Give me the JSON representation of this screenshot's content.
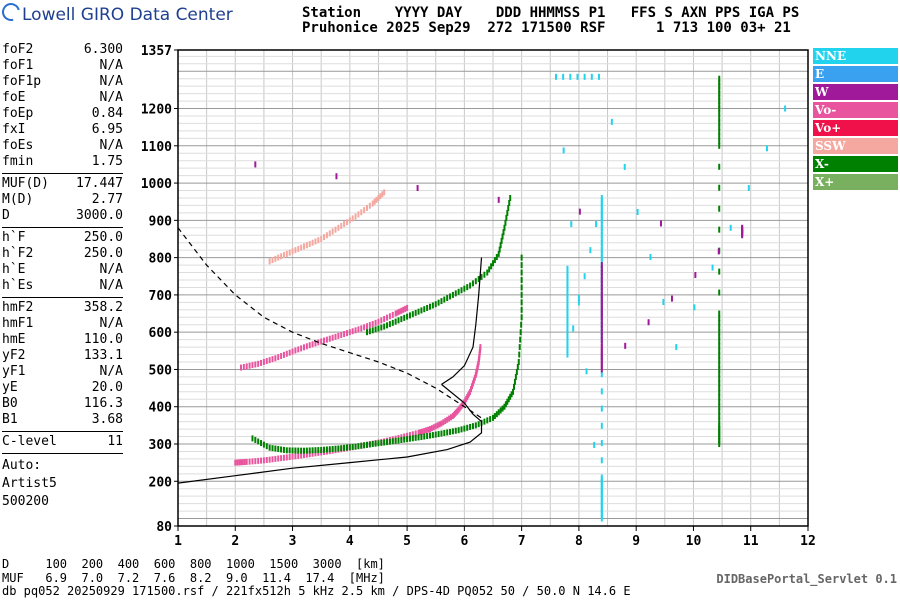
{
  "header": {
    "logo_text": "Lowell GIRO Data Center",
    "line1": "Station    YYYY DAY    DDD HHMMSS P1   FFS S AXN PPS IGA PS",
    "line2": "Pruhonice 2025 Sep29  272 171500 RSF      1 713 100 03+ 21"
  },
  "params": {
    "group1": [
      {
        "key": "foF2",
        "value": "6.300"
      },
      {
        "key": "foF1",
        "value": "N/A"
      },
      {
        "key": "foF1p",
        "value": "N/A"
      },
      {
        "key": "foE",
        "value": "N/A"
      },
      {
        "key": "foEp",
        "value": "0.84"
      },
      {
        "key": "fxI",
        "value": "6.95"
      },
      {
        "key": "foEs",
        "value": "N/A"
      },
      {
        "key": "fmin",
        "value": "1.75"
      }
    ],
    "group2": [
      {
        "key": "MUF(D)",
        "value": "17.447"
      },
      {
        "key": "M(D)",
        "value": "2.77"
      },
      {
        "key": "D",
        "value": "3000.0"
      }
    ],
    "group3": [
      {
        "key": "h`F",
        "value": "250.0"
      },
      {
        "key": "h`F2",
        "value": "250.0"
      },
      {
        "key": "h`E",
        "value": "N/A"
      },
      {
        "key": "h`Es",
        "value": "N/A"
      }
    ],
    "group4": [
      {
        "key": "hmF2",
        "value": "358.2"
      },
      {
        "key": "hmF1",
        "value": "N/A"
      },
      {
        "key": "hmE",
        "value": "110.0"
      },
      {
        "key": "yF2",
        "value": "133.1"
      },
      {
        "key": "yF1",
        "value": "N/A"
      },
      {
        "key": "yE",
        "value": "20.0"
      },
      {
        "key": "B0",
        "value": "116.3"
      },
      {
        "key": "B1",
        "value": "3.68"
      }
    ],
    "group5": [
      {
        "key": "C-level",
        "value": "11"
      }
    ],
    "auto": [
      "Auto:",
      "Artist5",
      "500200"
    ]
  },
  "legend": [
    {
      "label": "NNE",
      "color": "#22d3ee"
    },
    {
      "label": "E",
      "color": "#3aa0f0"
    },
    {
      "label": "W",
      "color": "#a0199a"
    },
    {
      "label": "Vo-",
      "color": "#e8559e"
    },
    {
      "label": "Vo+",
      "color": "#f0104a"
    },
    {
      "label": "SSW",
      "color": "#f4a8a0"
    },
    {
      "label": "X-",
      "color": "#008000"
    },
    {
      "label": "X+",
      "color": "#78b060"
    }
  ],
  "footer": {
    "line1": "D     100  200  400  600  800  1000  1500  3000  [km]",
    "line2": "MUF   6.9  7.0  7.2  7.6  8.2  9.0  11.4  17.4  [MHz]",
    "line3": "db pq052 20250929 171500.rsf / 221fx512h 5 kHz 2.5 km / DPS-4D PQ052 50 / 50.0 N 14.6 E",
    "servlet": "DIDBasePortal_Servlet 0.1"
  },
  "chart_data": {
    "type": "scatter",
    "xlim": [
      1,
      12
    ],
    "ylim": [
      80,
      1357
    ],
    "x_ticks": [
      1,
      2,
      3,
      4,
      5,
      6,
      7,
      8,
      9,
      10,
      11,
      12
    ],
    "y_ticks": [
      80,
      200,
      300,
      400,
      500,
      600,
      700,
      800,
      900,
      1000,
      1100,
      1200,
      1357
    ],
    "grid": true,
    "legend_position": "right",
    "series": [
      {
        "name": "Vo-",
        "color": "#e8559e",
        "points": [
          [
            2.0,
            250
          ],
          [
            2.2,
            252
          ],
          [
            2.5,
            256
          ],
          [
            2.8,
            262
          ],
          [
            3.1,
            268
          ],
          [
            3.4,
            275
          ],
          [
            3.7,
            282
          ],
          [
            4.0,
            290
          ],
          [
            4.3,
            298
          ],
          [
            4.6,
            307
          ],
          [
            4.9,
            318
          ],
          [
            5.2,
            330
          ],
          [
            5.4,
            340
          ],
          [
            5.6,
            355
          ],
          [
            5.8,
            375
          ],
          [
            5.9,
            392
          ],
          [
            6.0,
            412
          ],
          [
            6.1,
            440
          ],
          [
            6.2,
            485
          ],
          [
            6.25,
            520
          ],
          [
            6.28,
            560
          ]
        ]
      },
      {
        "name": "Vo- 2nd hop",
        "color": "#e8559e",
        "points": [
          [
            2.1,
            505
          ],
          [
            2.4,
            515
          ],
          [
            2.7,
            530
          ],
          [
            3.0,
            548
          ],
          [
            3.3,
            565
          ],
          [
            3.6,
            580
          ],
          [
            3.9,
            595
          ],
          [
            4.2,
            610
          ],
          [
            4.5,
            628
          ],
          [
            4.8,
            650
          ],
          [
            5.0,
            665
          ]
        ]
      },
      {
        "name": "Vo- 3rd hop",
        "color": "#f4a8a0",
        "points": [
          [
            2.6,
            790
          ],
          [
            2.9,
            810
          ],
          [
            3.2,
            830
          ],
          [
            3.5,
            850
          ],
          [
            3.8,
            880
          ],
          [
            4.1,
            910
          ],
          [
            4.4,
            945
          ],
          [
            4.6,
            975
          ]
        ]
      },
      {
        "name": "X-",
        "color": "#008000",
        "points": [
          [
            2.3,
            315
          ],
          [
            2.6,
            290
          ],
          [
            2.9,
            283
          ],
          [
            3.2,
            282
          ],
          [
            3.5,
            284
          ],
          [
            3.8,
            288
          ],
          [
            4.1,
            293
          ],
          [
            4.4,
            300
          ],
          [
            4.7,
            306
          ],
          [
            5.0,
            313
          ],
          [
            5.3,
            320
          ],
          [
            5.6,
            328
          ],
          [
            5.9,
            337
          ],
          [
            6.2,
            350
          ],
          [
            6.5,
            370
          ],
          [
            6.7,
            400
          ],
          [
            6.85,
            440
          ],
          [
            6.95,
            520
          ],
          [
            7.0,
            640
          ],
          [
            7.0,
            800
          ]
        ]
      },
      {
        "name": "X- 2nd hop",
        "color": "#008000",
        "points": [
          [
            4.3,
            600
          ],
          [
            4.6,
            615
          ],
          [
            4.9,
            635
          ],
          [
            5.2,
            655
          ],
          [
            5.5,
            675
          ],
          [
            5.8,
            700
          ],
          [
            6.1,
            725
          ],
          [
            6.4,
            760
          ],
          [
            6.6,
            810
          ],
          [
            6.7,
            880
          ],
          [
            6.8,
            960
          ]
        ]
      },
      {
        "name": "X- vertical",
        "color": "#008000",
        "points": [
          [
            10.45,
            1280
          ],
          [
            10.45,
            1200
          ],
          [
            10.45,
            1100
          ],
          [
            10.45,
            650
          ],
          [
            10.45,
            550
          ],
          [
            10.45,
            450
          ],
          [
            10.45,
            350
          ],
          [
            10.45,
            300
          ]
        ]
      },
      {
        "name": "NNE",
        "color": "#22d3ee",
        "points": [
          [
            7.8,
            770
          ],
          [
            7.8,
            700
          ],
          [
            7.8,
            620
          ],
          [
            7.8,
            540
          ],
          [
            8.4,
            960
          ],
          [
            8.4,
            900
          ],
          [
            8.4,
            820
          ],
          [
            8.4,
            740
          ],
          [
            8.4,
            660
          ],
          [
            8.4,
            580
          ],
          [
            8.4,
            210
          ],
          [
            8.4,
            160
          ],
          [
            8.4,
            100
          ],
          [
            7.6,
            1285
          ],
          [
            8.35,
            1285
          ],
          [
            9.7,
            560
          ],
          [
            11.6,
            1200
          ]
        ]
      },
      {
        "name": "W",
        "color": "#a0199a",
        "points": [
          [
            8.4,
            780
          ],
          [
            8.4,
            700
          ],
          [
            8.4,
            640
          ],
          [
            8.4,
            560
          ],
          [
            8.4,
            500
          ],
          [
            10.85,
            880
          ],
          [
            10.85,
            860
          ],
          [
            2.35,
            1050
          ]
        ]
      }
    ],
    "curves": [
      {
        "name": "profile",
        "style": "solid",
        "points": [
          [
            1.0,
            195
          ],
          [
            2.0,
            215
          ],
          [
            3.0,
            235
          ],
          [
            4.0,
            250
          ],
          [
            5.0,
            265
          ],
          [
            5.7,
            285
          ],
          [
            6.1,
            305
          ],
          [
            6.3,
            330
          ],
          [
            6.3,
            360
          ],
          [
            6.15,
            380
          ],
          [
            6.0,
            410
          ],
          [
            5.6,
            460
          ]
        ]
      },
      {
        "name": "profile upper",
        "style": "solid",
        "points": [
          [
            5.6,
            460
          ],
          [
            5.8,
            480
          ],
          [
            6.0,
            510
          ],
          [
            6.15,
            560
          ],
          [
            6.2,
            620
          ],
          [
            6.25,
            700
          ],
          [
            6.3,
            800
          ]
        ]
      },
      {
        "name": "MUF",
        "style": "dashed",
        "points": [
          [
            1.0,
            880
          ],
          [
            1.5,
            780
          ],
          [
            2.0,
            700
          ],
          [
            2.5,
            640
          ],
          [
            3.0,
            600
          ],
          [
            3.5,
            570
          ],
          [
            4.0,
            545
          ],
          [
            4.5,
            520
          ],
          [
            5.0,
            490
          ],
          [
            5.5,
            450
          ],
          [
            6.0,
            400
          ],
          [
            6.3,
            370
          ]
        ]
      }
    ]
  }
}
